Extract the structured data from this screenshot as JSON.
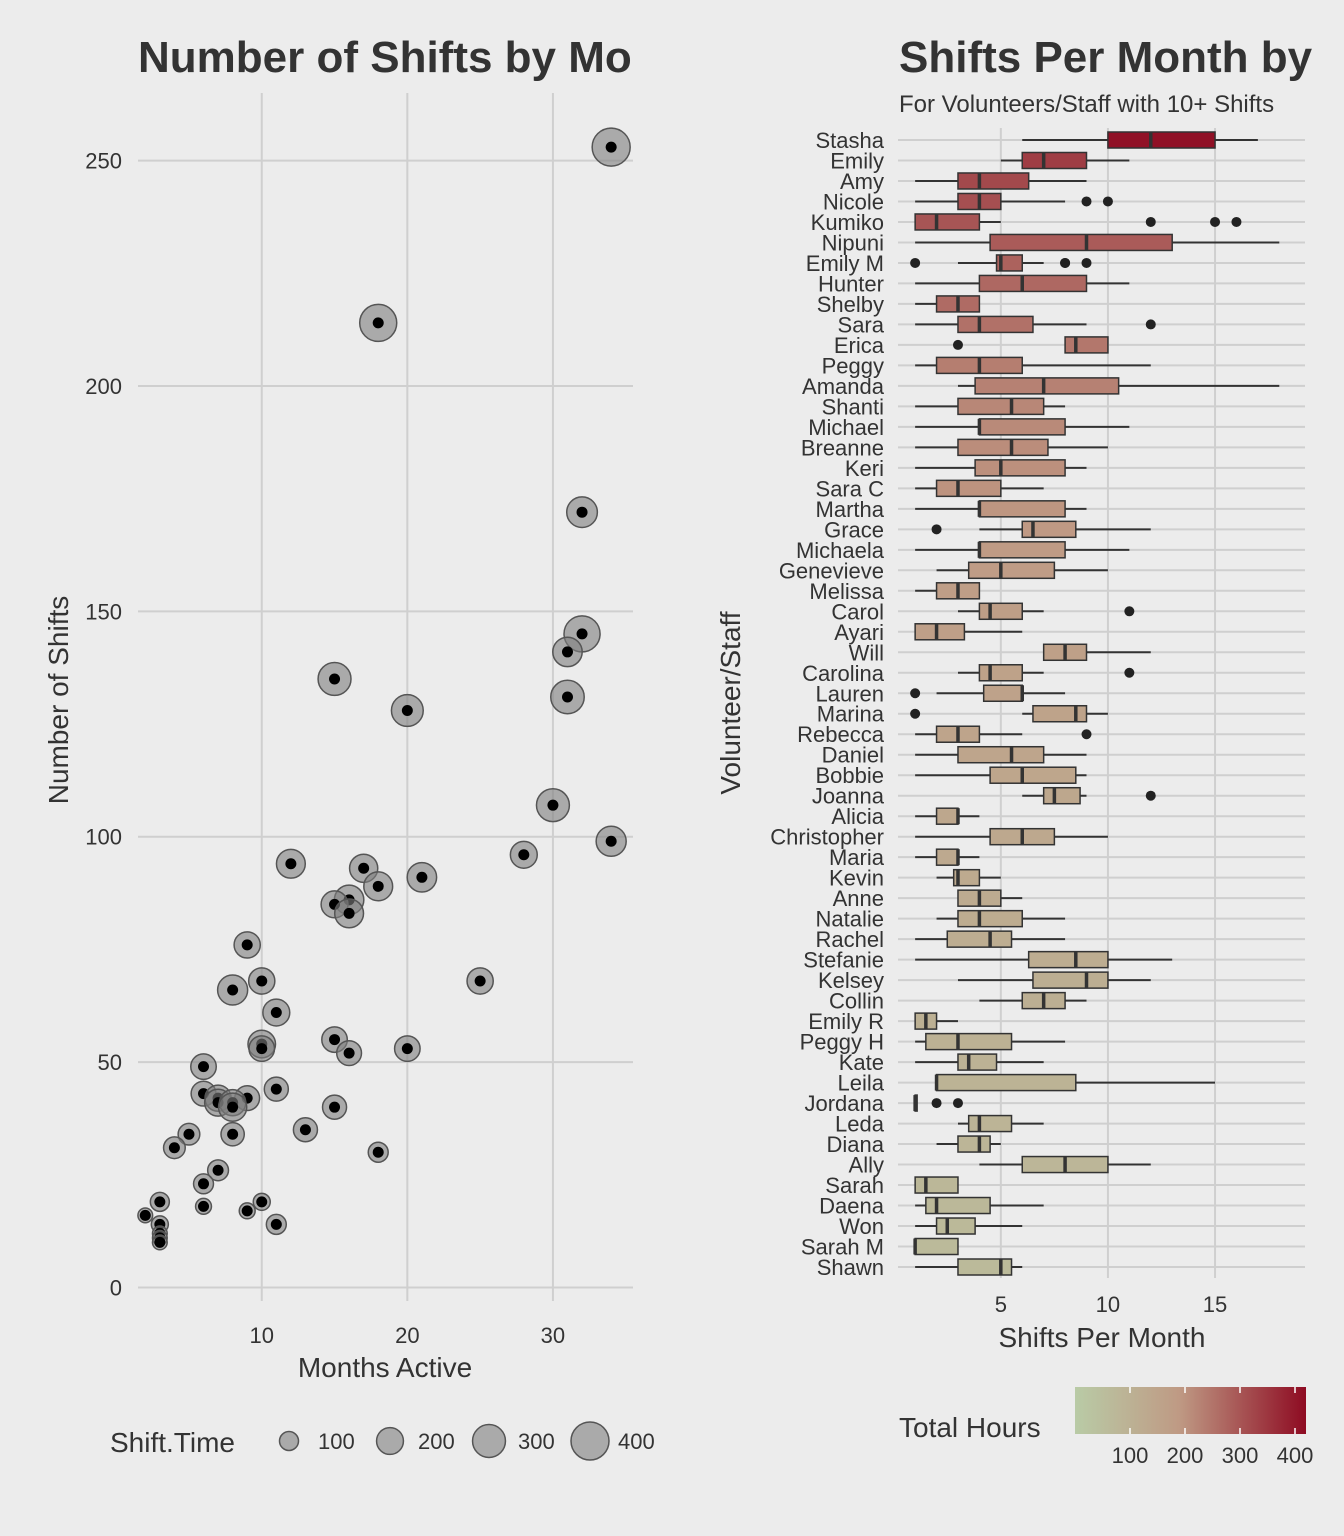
{
  "colors": {
    "background": "#ececec",
    "grid": "#cfcfcf",
    "text": "#333333",
    "point_fill": "#000000",
    "bubble_fill": "#7f7f7f",
    "gradient_low": "#b9cba6",
    "gradient_mid": "#bf9a84",
    "gradient_high": "#8e0b22"
  },
  "chart_data": [
    {
      "type": "scatter",
      "title": "Number of Shifts by Mo",
      "xlabel": "Months Active",
      "ylabel": "Number of Shifts",
      "xlim": [
        1.5,
        35.5
      ],
      "ylim": [
        -3,
        265
      ],
      "xticks": [
        10,
        20,
        30
      ],
      "yticks": [
        0,
        50,
        100,
        150,
        200,
        250
      ],
      "grid": true,
      "legend": {
        "title": "Shift.Time",
        "placement": "bottom",
        "sizes": [
          100,
          200,
          300,
          400
        ],
        "labels": [
          "100",
          "200",
          "300",
          "400"
        ]
      },
      "points": [
        {
          "x": 34,
          "y": 253,
          "size": 400
        },
        {
          "x": 18,
          "y": 214,
          "size": 380
        },
        {
          "x": 32,
          "y": 172,
          "size": 260
        },
        {
          "x": 32,
          "y": 145,
          "size": 360
        },
        {
          "x": 31,
          "y": 141,
          "size": 240
        },
        {
          "x": 15,
          "y": 135,
          "size": 300
        },
        {
          "x": 31,
          "y": 131,
          "size": 310
        },
        {
          "x": 20,
          "y": 128,
          "size": 280
        },
        {
          "x": 30,
          "y": 107,
          "size": 300
        },
        {
          "x": 34,
          "y": 99,
          "size": 250
        },
        {
          "x": 28,
          "y": 96,
          "size": 200
        },
        {
          "x": 12,
          "y": 94,
          "size": 230
        },
        {
          "x": 17,
          "y": 93,
          "size": 220
        },
        {
          "x": 21,
          "y": 91,
          "size": 240
        },
        {
          "x": 18,
          "y": 89,
          "size": 230
        },
        {
          "x": 16,
          "y": 86,
          "size": 240
        },
        {
          "x": 15,
          "y": 85,
          "size": 200
        },
        {
          "x": 16,
          "y": 83,
          "size": 230
        },
        {
          "x": 9,
          "y": 76,
          "size": 190
        },
        {
          "x": 10,
          "y": 68,
          "size": 190
        },
        {
          "x": 25,
          "y": 68,
          "size": 190
        },
        {
          "x": 8,
          "y": 66,
          "size": 250
        },
        {
          "x": 11,
          "y": 61,
          "size": 200
        },
        {
          "x": 15,
          "y": 55,
          "size": 180
        },
        {
          "x": 10,
          "y": 54,
          "size": 210
        },
        {
          "x": 10,
          "y": 53,
          "size": 180
        },
        {
          "x": 20,
          "y": 53,
          "size": 180
        },
        {
          "x": 16,
          "y": 52,
          "size": 170
        },
        {
          "x": 6,
          "y": 49,
          "size": 180
        },
        {
          "x": 11,
          "y": 44,
          "size": 160
        },
        {
          "x": 6,
          "y": 43,
          "size": 170
        },
        {
          "x": 7,
          "y": 42,
          "size": 190
        },
        {
          "x": 9,
          "y": 42,
          "size": 170
        },
        {
          "x": 7,
          "y": 41,
          "size": 200
        },
        {
          "x": 8,
          "y": 41,
          "size": 190
        },
        {
          "x": 8,
          "y": 40,
          "size": 220
        },
        {
          "x": 15,
          "y": 40,
          "size": 160
        },
        {
          "x": 13,
          "y": 35,
          "size": 160
        },
        {
          "x": 5,
          "y": 34,
          "size": 130
        },
        {
          "x": 8,
          "y": 34,
          "size": 150
        },
        {
          "x": 4,
          "y": 31,
          "size": 130
        },
        {
          "x": 18,
          "y": 30,
          "size": 110
        },
        {
          "x": 7,
          "y": 26,
          "size": 120
        },
        {
          "x": 6,
          "y": 23,
          "size": 110
        },
        {
          "x": 3,
          "y": 19,
          "size": 100
        },
        {
          "x": 10,
          "y": 19,
          "size": 80
        },
        {
          "x": 6,
          "y": 18,
          "size": 70
        },
        {
          "x": 9,
          "y": 17,
          "size": 70
        },
        {
          "x": 2,
          "y": 16,
          "size": 60
        },
        {
          "x": 3,
          "y": 14,
          "size": 80
        },
        {
          "x": 11,
          "y": 14,
          "size": 110
        },
        {
          "x": 3,
          "y": 12,
          "size": 60
        },
        {
          "x": 3,
          "y": 11,
          "size": 60
        },
        {
          "x": 3,
          "y": 10,
          "size": 60
        }
      ]
    },
    {
      "type": "boxplot",
      "title": "Shifts Per Month by",
      "subtitle": "For Volunteers/Staff with 10+ Shifts",
      "xlabel": "Shifts Per Month",
      "ylabel": "Volunteer/Staff",
      "xlim": [
        0.2,
        19.2
      ],
      "xticks": [
        5,
        10,
        15
      ],
      "grid": true,
      "legend": {
        "title": "Total Hours",
        "placement": "bottom",
        "range": [
          0,
          420
        ],
        "ticks": [
          100,
          200,
          300,
          400
        ],
        "labels": [
          "100",
          "200",
          "300",
          "400"
        ]
      },
      "series": [
        {
          "name": "Stasha",
          "min": 6,
          "q1": 10,
          "median": 12,
          "q3": 15,
          "max": 17,
          "outliers": [],
          "total_hours": 410
        },
        {
          "name": "Emily",
          "min": 5,
          "q1": 6,
          "median": 7,
          "q3": 9,
          "max": 11,
          "outliers": [],
          "total_hours": 340
        },
        {
          "name": "Amy",
          "min": 1,
          "q1": 3,
          "median": 4,
          "q3": 6.3,
          "max": 9,
          "outliers": [],
          "total_hours": 320
        },
        {
          "name": "Nicole",
          "min": 1,
          "q1": 3,
          "median": 4,
          "q3": 5,
          "max": 8,
          "outliers": [
            9,
            10
          ],
          "total_hours": 310
        },
        {
          "name": "Kumiko",
          "min": 1,
          "q1": 1,
          "median": 2,
          "q3": 4,
          "max": 5,
          "outliers": [
            12,
            15,
            16
          ],
          "total_hours": 300
        },
        {
          "name": "Nipuni",
          "min": 1,
          "q1": 4.5,
          "median": 9,
          "q3": 13,
          "max": 18,
          "outliers": [],
          "total_hours": 290
        },
        {
          "name": "Emily M",
          "min": 3,
          "q1": 4.8,
          "median": 5,
          "q3": 6,
          "max": 7,
          "outliers": [
            1,
            8,
            8,
            9
          ],
          "total_hours": 280
        },
        {
          "name": "Hunter",
          "min": 1,
          "q1": 4,
          "median": 6,
          "q3": 9,
          "max": 11,
          "outliers": [],
          "total_hours": 270
        },
        {
          "name": "Shelby",
          "min": 1,
          "q1": 2,
          "median": 3,
          "q3": 4,
          "max": 4,
          "outliers": [],
          "total_hours": 265
        },
        {
          "name": "Sara",
          "min": 1,
          "q1": 3,
          "median": 4,
          "q3": 6.5,
          "max": 9,
          "outliers": [
            12
          ],
          "total_hours": 255
        },
        {
          "name": "Erica",
          "min": 8,
          "q1": 8,
          "median": 8.5,
          "q3": 10,
          "max": 10,
          "outliers": [
            3
          ],
          "total_hours": 245
        },
        {
          "name": "Peggy",
          "min": 1,
          "q1": 2,
          "median": 4,
          "q3": 6,
          "max": 12,
          "outliers": [],
          "total_hours": 235
        },
        {
          "name": "Amanda",
          "min": 3,
          "q1": 3.8,
          "median": 7,
          "q3": 10.5,
          "max": 18,
          "outliers": [],
          "total_hours": 230
        },
        {
          "name": "Shanti",
          "min": 1,
          "q1": 3,
          "median": 5.5,
          "q3": 7,
          "max": 8,
          "outliers": [],
          "total_hours": 220
        },
        {
          "name": "Michael",
          "min": 1,
          "q1": 4,
          "median": 4,
          "q3": 8,
          "max": 11,
          "outliers": [],
          "total_hours": 215
        },
        {
          "name": "Breanne",
          "min": 1,
          "q1": 3,
          "median": 5.5,
          "q3": 7.2,
          "max": 10,
          "outliers": [],
          "total_hours": 210
        },
        {
          "name": "Keri",
          "min": 1,
          "q1": 3.8,
          "median": 5,
          "q3": 8,
          "max": 9,
          "outliers": [],
          "total_hours": 205
        },
        {
          "name": "Sara C",
          "min": 1,
          "q1": 2,
          "median": 3,
          "q3": 5,
          "max": 7,
          "outliers": [],
          "total_hours": 200
        },
        {
          "name": "Martha",
          "min": 1,
          "q1": 4,
          "median": 4,
          "q3": 8,
          "max": 9,
          "outliers": [],
          "total_hours": 195
        },
        {
          "name": "Grace",
          "min": 4,
          "q1": 6,
          "median": 6.5,
          "q3": 8.5,
          "max": 12,
          "outliers": [
            2
          ],
          "total_hours": 190
        },
        {
          "name": "Michaela",
          "min": 1,
          "q1": 4,
          "median": 4,
          "q3": 8,
          "max": 11,
          "outliers": [],
          "total_hours": 185
        },
        {
          "name": "Genevieve",
          "min": 2,
          "q1": 3.5,
          "median": 5,
          "q3": 7.5,
          "max": 10,
          "outliers": [],
          "total_hours": 180
        },
        {
          "name": "Melissa",
          "min": 1,
          "q1": 2,
          "median": 3,
          "q3": 4,
          "max": 4,
          "outliers": [],
          "total_hours": 175
        },
        {
          "name": "Carol",
          "min": 3,
          "q1": 4,
          "median": 4.5,
          "q3": 6,
          "max": 7,
          "outliers": [
            11
          ],
          "total_hours": 172
        },
        {
          "name": "Ayari",
          "min": 1,
          "q1": 1,
          "median": 2,
          "q3": 3.3,
          "max": 6,
          "outliers": [],
          "total_hours": 168
        },
        {
          "name": "Will",
          "min": 7,
          "q1": 7,
          "median": 8,
          "q3": 9,
          "max": 12,
          "outliers": [],
          "total_hours": 165
        },
        {
          "name": "Carolina",
          "min": 3,
          "q1": 4,
          "median": 4.5,
          "q3": 6,
          "max": 7,
          "outliers": [
            11
          ],
          "total_hours": 160
        },
        {
          "name": "Lauren",
          "min": 2,
          "q1": 4.2,
          "median": 6,
          "q3": 6,
          "max": 8,
          "outliers": [
            1
          ],
          "total_hours": 157
        },
        {
          "name": "Marina",
          "min": 6,
          "q1": 6.5,
          "median": 8.5,
          "q3": 9,
          "max": 10,
          "outliers": [
            1
          ],
          "total_hours": 154
        },
        {
          "name": "Rebecca",
          "min": 1,
          "q1": 2,
          "median": 3,
          "q3": 4,
          "max": 6,
          "outliers": [
            9
          ],
          "total_hours": 150
        },
        {
          "name": "Daniel",
          "min": 1,
          "q1": 3,
          "median": 5.5,
          "q3": 7,
          "max": 9,
          "outliers": [],
          "total_hours": 147
        },
        {
          "name": "Bobbie",
          "min": 1,
          "q1": 4.5,
          "median": 6,
          "q3": 8.5,
          "max": 9,
          "outliers": [],
          "total_hours": 144
        },
        {
          "name": "Joanna",
          "min": 6,
          "q1": 7,
          "median": 7.5,
          "q3": 8.7,
          "max": 9,
          "outliers": [
            12
          ],
          "total_hours": 140
        },
        {
          "name": "Alicia",
          "min": 1,
          "q1": 2,
          "median": 3,
          "q3": 3,
          "max": 4,
          "outliers": [],
          "total_hours": 137
        },
        {
          "name": "Christopher",
          "min": 1,
          "q1": 4.5,
          "median": 6,
          "q3": 7.5,
          "max": 10,
          "outliers": [],
          "total_hours": 134
        },
        {
          "name": "Maria",
          "min": 1,
          "q1": 2,
          "median": 3,
          "q3": 3,
          "max": 4,
          "outliers": [],
          "total_hours": 130
        },
        {
          "name": "Kevin",
          "min": 2,
          "q1": 2.8,
          "median": 3,
          "q3": 4,
          "max": 5,
          "outliers": [],
          "total_hours": 127
        },
        {
          "name": "Anne",
          "min": 3,
          "q1": 3,
          "median": 4,
          "q3": 5,
          "max": 6,
          "outliers": [],
          "total_hours": 124
        },
        {
          "name": "Natalie",
          "min": 2,
          "q1": 3,
          "median": 4,
          "q3": 6,
          "max": 8,
          "outliers": [],
          "total_hours": 120
        },
        {
          "name": "Rachel",
          "min": 1,
          "q1": 2.5,
          "median": 4.5,
          "q3": 5.5,
          "max": 8,
          "outliers": [],
          "total_hours": 117
        },
        {
          "name": "Stefanie",
          "min": 1,
          "q1": 6.3,
          "median": 8.5,
          "q3": 10,
          "max": 13,
          "outliers": [],
          "total_hours": 114
        },
        {
          "name": "Kelsey",
          "min": 3,
          "q1": 6.5,
          "median": 9,
          "q3": 10,
          "max": 12,
          "outliers": [],
          "total_hours": 110
        },
        {
          "name": "Collin",
          "min": 4,
          "q1": 6,
          "median": 7,
          "q3": 8,
          "max": 9,
          "outliers": [],
          "total_hours": 107
        },
        {
          "name": "Emily R",
          "min": 1,
          "q1": 1,
          "median": 1.5,
          "q3": 2,
          "max": 3,
          "outliers": [],
          "total_hours": 104
        },
        {
          "name": "Peggy H",
          "min": 1,
          "q1": 1.5,
          "median": 3,
          "q3": 5.5,
          "max": 8,
          "outliers": [],
          "total_hours": 100
        },
        {
          "name": "Kate",
          "min": 1,
          "q1": 3,
          "median": 3.5,
          "q3": 4.8,
          "max": 7,
          "outliers": [],
          "total_hours": 97
        },
        {
          "name": "Leila",
          "min": 2,
          "q1": 2,
          "median": 2,
          "q3": 8.5,
          "max": 15,
          "outliers": [],
          "total_hours": 94
        },
        {
          "name": "Jordana",
          "min": 1,
          "q1": 1,
          "median": 1,
          "q3": 1,
          "max": 1,
          "outliers": [
            2,
            3
          ],
          "total_hours": 90
        },
        {
          "name": "Leda",
          "min": 3,
          "q1": 3.5,
          "median": 4,
          "q3": 5.5,
          "max": 7,
          "outliers": [],
          "total_hours": 87
        },
        {
          "name": "Diana",
          "min": 2,
          "q1": 3,
          "median": 4,
          "q3": 4.5,
          "max": 5,
          "outliers": [],
          "total_hours": 84
        },
        {
          "name": "Ally",
          "min": 4,
          "q1": 6,
          "median": 8,
          "q3": 10,
          "max": 12,
          "outliers": [],
          "total_hours": 80
        },
        {
          "name": "Sarah",
          "min": 1,
          "q1": 1,
          "median": 1.5,
          "q3": 3,
          "max": 3,
          "outliers": [],
          "total_hours": 77
        },
        {
          "name": "Daena",
          "min": 1,
          "q1": 1.5,
          "median": 2,
          "q3": 4.5,
          "max": 7,
          "outliers": [],
          "total_hours": 74
        },
        {
          "name": "Won",
          "min": 1,
          "q1": 2,
          "median": 2.5,
          "q3": 3.8,
          "max": 6,
          "outliers": [],
          "total_hours": 70
        },
        {
          "name": "Sarah M",
          "min": 1,
          "q1": 1,
          "median": 1,
          "q3": 3,
          "max": 3,
          "outliers": [],
          "total_hours": 67
        },
        {
          "name": "Shawn",
          "min": 1,
          "q1": 3,
          "median": 5,
          "q3": 5.5,
          "max": 6,
          "outliers": [],
          "total_hours": 64
        }
      ]
    }
  ]
}
